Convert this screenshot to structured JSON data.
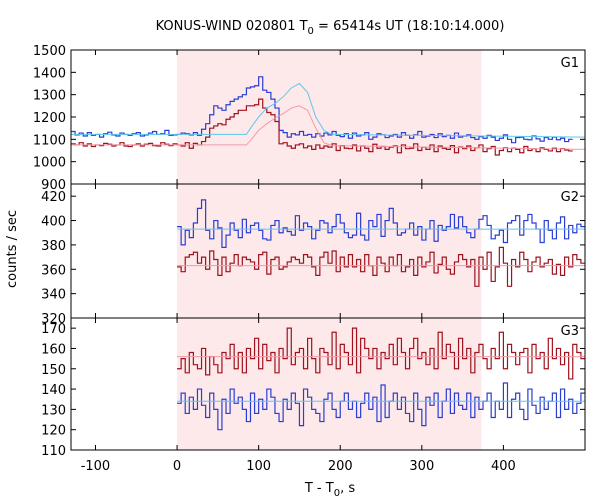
{
  "chart_data": {
    "type": "line",
    "title_prefix": "KONUS-WIND 020801 T",
    "title_sub": "0",
    "title_suffix": " = 65414s UT (18:10:14.000)",
    "xlabel_prefix": "T - T",
    "xlabel_sub": "0",
    "xlabel_suffix": ", s",
    "ylabel": "counts / sec",
    "xlim": [
      -130,
      500
    ],
    "xticks": [
      -100,
      0,
      100,
      200,
      300,
      400
    ],
    "shaded_interval": [
      0,
      373
    ],
    "colors": {
      "shade": "#fde8ea",
      "blue_line": "#2a3fd1",
      "red_line": "#a0121e",
      "blue_fit": "#5fc8ee",
      "red_fit": "#f29aa6"
    },
    "bin_width": 5,
    "panels": [
      {
        "label": "G1",
        "ylim": [
          900,
          1500
        ],
        "yticks": [
          900,
          1000,
          1100,
          1200,
          1300,
          1400,
          1500
        ],
        "series": [
          {
            "color_key": "blue_line",
            "x_start": -130,
            "values": [
              1135,
              1120,
              1128,
              1115,
              1130,
              1118,
              1122,
              1110,
              1125,
              1132,
              1120,
              1115,
              1128,
              1122,
              1118,
              1125,
              1130,
              1115,
              1120,
              1128,
              1135,
              1122,
              1125,
              1140,
              1118,
              1120,
              1122,
              1128,
              1125,
              1120,
              1130,
              1118,
              1145,
              1170,
              1210,
              1250,
              1240,
              1230,
              1255,
              1270,
              1280,
              1290,
              1300,
              1330,
              1335,
              1340,
              1380,
              1320,
              1310,
              1280,
              1240,
              1140,
              1130,
              1110,
              1125,
              1120,
              1135,
              1118,
              1122,
              1110,
              1125,
              1115,
              1128,
              1120,
              1135,
              1118,
              1112,
              1125,
              1105,
              1128,
              1115,
              1120,
              1130,
              1100,
              1110,
              1125,
              1120,
              1108,
              1115,
              1122,
              1110,
              1130,
              1118,
              1105,
              1120,
              1135,
              1110,
              1115,
              1122,
              1108,
              1125,
              1112,
              1118,
              1105,
              1128,
              1110,
              1115,
              1120,
              1108,
              1100,
              1112,
              1105,
              1118,
              1110,
              1095,
              1105,
              1120,
              1100,
              1085,
              1108,
              1110,
              1100,
              1098,
              1115,
              1102,
              1092,
              1108,
              1100,
              1110,
              1098,
              1105,
              1090,
              1100
            ]
          },
          {
            "color_key": "red_line",
            "x_start": -130,
            "values": [
              1080,
              1075,
              1085,
              1070,
              1080,
              1068,
              1075,
              1072,
              1082,
              1078,
              1070,
              1075,
              1085,
              1070,
              1068,
              1075,
              1080,
              1070,
              1078,
              1082,
              1072,
              1070,
              1085,
              1078,
              1072,
              1080,
              1075,
              1070,
              1085,
              1060,
              1082,
              1075,
              1090,
              1110,
              1150,
              1160,
              1170,
              1165,
              1190,
              1200,
              1215,
              1230,
              1230,
              1250,
              1250,
              1255,
              1280,
              1240,
              1220,
              1210,
              1180,
              1080,
              1085,
              1070,
              1060,
              1075,
              1080,
              1062,
              1070,
              1055,
              1075,
              1060,
              1070,
              1065,
              1080,
              1050,
              1072,
              1060,
              1058,
              1075,
              1048,
              1070,
              1060,
              1045,
              1078,
              1060,
              1068,
              1055,
              1065,
              1070,
              1040,
              1075,
              1058,
              1060,
              1080,
              1050,
              1065,
              1055,
              1075,
              1045,
              1070,
              1060,
              1055,
              1072,
              1040,
              1065,
              1058,
              1070,
              1050,
              1062,
              1075,
              1045,
              1058,
              1068,
              1030,
              1050,
              1062,
              1045,
              1060,
              1055,
              1040,
              1068,
              1050,
              1058,
              1045,
              1062,
              1055,
              1048,
              1060,
              1045,
              1058,
              1052,
              1048
            ]
          }
        ],
        "fits": [
          {
            "color_key": "blue_fit",
            "points": [
              [
                -130,
                1122
              ],
              [
                85,
                1122
              ],
              [
                90,
                1150
              ],
              [
                100,
                1200
              ],
              [
                110,
                1240
              ],
              [
                120,
                1260
              ],
              [
                130,
                1290
              ],
              [
                140,
                1330
              ],
              [
                150,
                1350
              ],
              [
                160,
                1310
              ],
              [
                170,
                1200
              ],
              [
                180,
                1140
              ],
              [
                190,
                1122
              ],
              [
                500,
                1110
              ]
            ]
          },
          {
            "color_key": "red_fit",
            "points": [
              [
                -130,
                1075
              ],
              [
                85,
                1075
              ],
              [
                90,
                1095
              ],
              [
                100,
                1140
              ],
              [
                110,
                1170
              ],
              [
                120,
                1195
              ],
              [
                130,
                1215
              ],
              [
                140,
                1240
              ],
              [
                150,
                1250
              ],
              [
                160,
                1230
              ],
              [
                170,
                1150
              ],
              [
                180,
                1085
              ],
              [
                190,
                1072
              ],
              [
                500,
                1055
              ]
            ]
          }
        ]
      },
      {
        "label": "G2",
        "ylim": [
          320,
          430
        ],
        "yticks": [
          320,
          340,
          360,
          380,
          400,
          420
        ],
        "series": [
          {
            "color_key": "blue_line",
            "x_start": 0,
            "values": [
              395,
              380,
              392,
              386,
              398,
              410,
              417,
              392,
              385,
              400,
              394,
              378,
              388,
              398,
              392,
              386,
              401,
              390,
              396,
              398,
              392,
              385,
              384,
              396,
              400,
              390,
              394,
              391,
              388,
              404,
              392,
              398,
              395,
              385,
              392,
              400,
              398,
              390,
              395,
              405,
              398,
              390,
              386,
              388,
              406,
              388,
              384,
              400,
              395,
              405,
              387,
              400,
              410,
              398,
              388,
              390,
              393,
              398,
              388,
              395,
              384,
              393,
              400,
              383,
              396,
              392,
              395,
              405,
              394,
              403,
              395,
              390,
              386,
              393,
              401,
              404,
              396,
              385,
              388,
              392,
              382,
              398,
              400,
              404,
              388,
              400,
              405,
              398,
              393,
              382,
              400,
              392,
              385,
              398,
              403,
              385,
              396,
              390,
              397,
              395
            ]
          },
          {
            "color_key": "red_line",
            "x_start": 0,
            "values": [
              362,
              358,
              370,
              372,
              374,
              365,
              370,
              360,
              375,
              368,
              355,
              370,
              358,
              365,
              372,
              363,
              370,
              368,
              366,
              360,
              372,
              374,
              356,
              368,
              370,
              360,
              362,
              366,
              370,
              368,
              365,
              372,
              370,
              362,
              355,
              370,
              374,
              365,
              375,
              358,
              370,
              362,
              372,
              362,
              368,
              358,
              372,
              363,
              355,
              370,
              365,
              358,
              370,
              363,
              372,
              358,
              362,
              368,
              355,
              370,
              362,
              366,
              374,
              357,
              364,
              370,
              360,
              356,
              366,
              372,
              368,
              362,
              368,
              346,
              370,
              360,
              374,
              350,
              362,
              378,
              365,
              346,
              368,
              362,
              374,
              368,
              358,
              366,
              370,
              362,
              365,
              368,
              356,
              364,
              355,
              370,
              362,
              372,
              368,
              365
            ]
          }
        ],
        "fits": [
          {
            "color_key": "blue_fit",
            "points": [
              [
                0,
                393
              ],
              [
                500,
                393
              ]
            ]
          },
          {
            "color_key": "red_fit",
            "points": [
              [
                0,
                363
              ],
              [
                500,
                363
              ]
            ]
          }
        ]
      },
      {
        "label": "G3",
        "ylim": [
          110,
          175
        ],
        "yticks": [
          110,
          120,
          130,
          140,
          150,
          160,
          170
        ],
        "series": [
          {
            "color_key": "blue_line",
            "x_start": 0,
            "values": [
              133,
              138,
              128,
              136,
              130,
              140,
              132,
              126,
              138,
              130,
              120,
              135,
              128,
              140,
              133,
              136,
              130,
              124,
              138,
              128,
              135,
              130,
              140,
              136,
              128,
              124,
              135,
              130,
              138,
              133,
              122,
              140,
              136,
              130,
              128,
              124,
              135,
              138,
              130,
              126,
              134,
              138,
              130,
              134,
              126,
              133,
              138,
              130,
              136,
              124,
              142,
              126,
              134,
              138,
              130,
              136,
              128,
              124,
              138,
              130,
              122,
              136,
              132,
              138,
              126,
              134,
              140,
              128,
              138,
              132,
              130,
              138,
              126,
              136,
              130,
              134,
              138,
              126,
              134,
              130,
              143,
              126,
              135,
              138,
              130,
              125,
              140,
              132,
              128,
              136,
              130,
              134,
              138,
              126,
              140,
              130,
              135,
              128,
              133,
              138
            ]
          },
          {
            "color_key": "red_line",
            "x_start": 0,
            "values": [
              150,
              155,
              148,
              158,
              152,
              150,
              160,
              147,
              156,
              152,
              148,
              158,
              155,
              162,
              150,
              158,
              148,
              160,
              155,
              165,
              150,
              162,
              154,
              158,
              148,
              160,
              155,
              170,
              152,
              158,
              160,
              150,
              165,
              155,
              148,
              160,
              158,
              152,
              168,
              150,
              162,
              158,
              152,
              170,
              148,
              165,
              160,
              155,
              160,
              150,
              158,
              155,
              162,
              152,
              165,
              158,
              150,
              160,
              165,
              155,
              158,
              152,
              160,
              150,
              168,
              155,
              162,
              158,
              150,
              165,
              155,
              160,
              148,
              158,
              162,
              155,
              150,
              160,
              155,
              168,
              150,
              162,
              158,
              152,
              158,
              160,
              148,
              162,
              155,
              158,
              150,
              165,
              155,
              160,
              152,
              158,
              145,
              162,
              158,
              155
            ]
          }
        ],
        "fits": [
          {
            "color_key": "blue_fit",
            "points": [
              [
                0,
                134
              ],
              [
                500,
                134
              ]
            ]
          },
          {
            "color_key": "red_fit",
            "points": [
              [
                0,
                156
              ],
              [
                500,
                156
              ]
            ]
          }
        ]
      }
    ]
  }
}
